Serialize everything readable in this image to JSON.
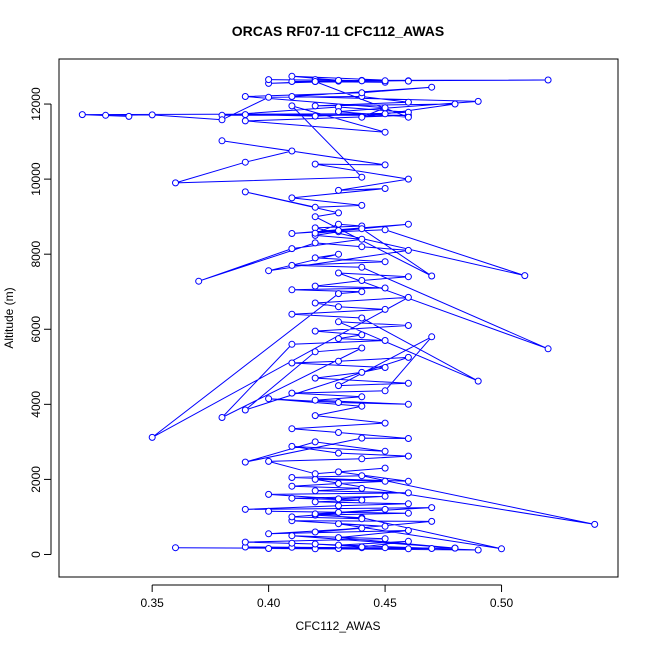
{
  "chart_data": {
    "type": "line",
    "title": "ORCAS RF07-11 CFC112_AWAS",
    "xlabel": "CFC112_AWAS",
    "ylabel": "Altitude (m)",
    "xlim": [
      0.31,
      0.55
    ],
    "ylim": [
      -600,
      13200
    ],
    "xticks": [
      0.35,
      0.4,
      0.45,
      0.5
    ],
    "xtick_labels": [
      "0.35",
      "0.40",
      "0.45",
      "0.50"
    ],
    "yticks": [
      0,
      2000,
      4000,
      6000,
      8000,
      10000,
      12000
    ],
    "ytick_labels": [
      "0",
      "2000",
      "4000",
      "6000",
      "8000",
      "10000",
      "12000"
    ],
    "grid": false,
    "legend": "none",
    "series": [
      {
        "color": "#0000ff",
        "marker": "open-circle",
        "x": [
          0.36,
          0.46,
          0.41,
          0.43,
          0.48,
          0.44,
          0.39,
          0.47,
          0.42,
          0.45,
          0.4,
          0.49,
          0.41,
          0.43,
          0.46,
          0.44,
          0.42,
          0.39,
          0.45,
          0.41,
          0.48,
          0.43,
          0.46,
          0.4,
          0.44,
          0.42,
          0.47,
          0.41,
          0.45,
          0.43,
          0.5,
          0.44,
          0.42,
          0.46,
          0.4,
          0.43,
          0.45,
          0.41,
          0.44,
          0.42,
          0.47,
          0.39,
          0.43,
          0.46,
          0.42,
          0.44,
          0.41,
          0.45,
          0.43,
          0.4,
          0.46,
          0.42,
          0.44,
          0.41,
          0.43,
          0.45,
          0.42,
          0.54,
          0.44,
          0.41,
          0.46,
          0.43,
          0.45,
          0.42,
          0.4,
          0.44,
          0.46,
          0.43,
          0.41,
          0.45,
          0.42,
          0.39,
          0.44,
          0.46,
          0.43,
          0.41,
          0.45,
          0.42,
          0.44,
          0.4,
          0.43,
          0.46,
          0.42,
          0.44,
          0.41,
          0.45,
          0.47,
          0.43,
          0.46,
          0.42,
          0.44,
          0.45,
          0.41,
          0.43,
          0.46,
          0.39,
          0.42,
          0.44,
          0.38,
          0.41,
          0.45,
          0.43,
          0.44,
          0.42,
          0.46,
          0.43,
          0.49,
          0.44,
          0.41,
          0.45,
          0.43,
          0.42,
          0.46,
          0.35,
          0.43,
          0.44,
          0.41,
          0.45,
          0.42,
          0.44,
          0.46,
          0.43,
          0.52,
          0.44,
          0.41,
          0.45,
          0.42,
          0.43,
          0.4,
          0.46,
          0.44,
          0.42,
          0.37,
          0.41,
          0.44,
          0.42,
          0.43,
          0.45,
          0.51,
          0.42,
          0.44,
          0.43,
          0.42,
          0.46,
          0.41,
          0.43,
          0.44,
          0.47,
          0.42,
          0.43,
          0.39,
          0.42,
          0.44,
          0.41,
          0.45,
          0.43,
          0.46,
          0.42,
          0.45,
          0.38,
          0.41,
          0.39,
          0.36,
          0.44,
          0.41,
          0.45,
          0.39,
          0.46,
          0.38,
          0.43,
          0.46,
          0.42,
          0.39,
          0.45,
          0.32,
          0.34,
          0.33,
          0.35,
          0.38,
          0.4,
          0.44,
          0.46,
          0.42,
          0.48,
          0.44,
          0.45,
          0.39,
          0.44,
          0.47,
          0.41,
          0.49,
          0.43,
          0.46,
          0.42,
          0.4,
          0.44,
          0.42,
          0.45,
          0.41,
          0.46,
          0.43,
          0.44,
          0.52,
          0.45,
          0.42,
          0.44,
          0.4,
          0.43,
          0.41,
          0.46
        ],
        "y": [
          180,
          150,
          190,
          160,
          170,
          180,
          200,
          160,
          150,
          180,
          160,
          120,
          300,
          250,
          350,
          200,
          280,
          330,
          420,
          500,
          170,
          450,
          640,
          550,
          700,
          600,
          880,
          900,
          750,
          820,
          150,
          980,
          1050,
          1100,
          1150,
          1120,
          1200,
          1000,
          950,
          1080,
          1250,
          1200,
          1300,
          1350,
          1400,
          1450,
          1500,
          1550,
          1480,
          1600,
          1640,
          1700,
          1760,
          1820,
          1890,
          1950,
          2000,
          800,
          2100,
          2050,
          1950,
          2200,
          2300,
          2150,
          2480,
          2550,
          2620,
          2700,
          2880,
          2750,
          3000,
          2460,
          3100,
          3090,
          3250,
          3350,
          3500,
          3700,
          3950,
          4150,
          4050,
          4000,
          4110,
          4200,
          4300,
          4360,
          5800,
          4500,
          4560,
          4700,
          4850,
          4980,
          5100,
          5150,
          5250,
          3850,
          5400,
          5500,
          3650,
          5600,
          5700,
          5750,
          5850,
          5950,
          6100,
          6200,
          4620,
          6300,
          6400,
          6530,
          6600,
          6700,
          6850,
          3120,
          6950,
          7000,
          7050,
          7100,
          7150,
          7300,
          7400,
          7500,
          5480,
          7650,
          7700,
          7800,
          7900,
          8000,
          7560,
          8100,
          8200,
          8300,
          7280,
          8150,
          8400,
          8500,
          8600,
          8650,
          7430,
          8700,
          8750,
          8800,
          8560,
          8800,
          8550,
          8630,
          8680,
          7420,
          9000,
          9100,
          9660,
          9250,
          9300,
          9500,
          9750,
          9700,
          10000,
          10400,
          10380,
          11020,
          10750,
          10450,
          9900,
          10050,
          11950,
          11250,
          11550,
          11700,
          11700,
          11920,
          11780,
          11680,
          11720,
          11740,
          11720,
          11670,
          11700,
          11710,
          11580,
          12180,
          12200,
          12050,
          11950,
          12000,
          11650,
          11900,
          12200,
          12300,
          12450,
          12200,
          12070,
          11800,
          11650,
          12600,
          12550,
          12620,
          12650,
          12580,
          12600,
          12620,
          12610,
          12630,
          12640,
          12620,
          12600,
          12620,
          12650,
          12630,
          12740,
          12610
        ]
      }
    ]
  }
}
